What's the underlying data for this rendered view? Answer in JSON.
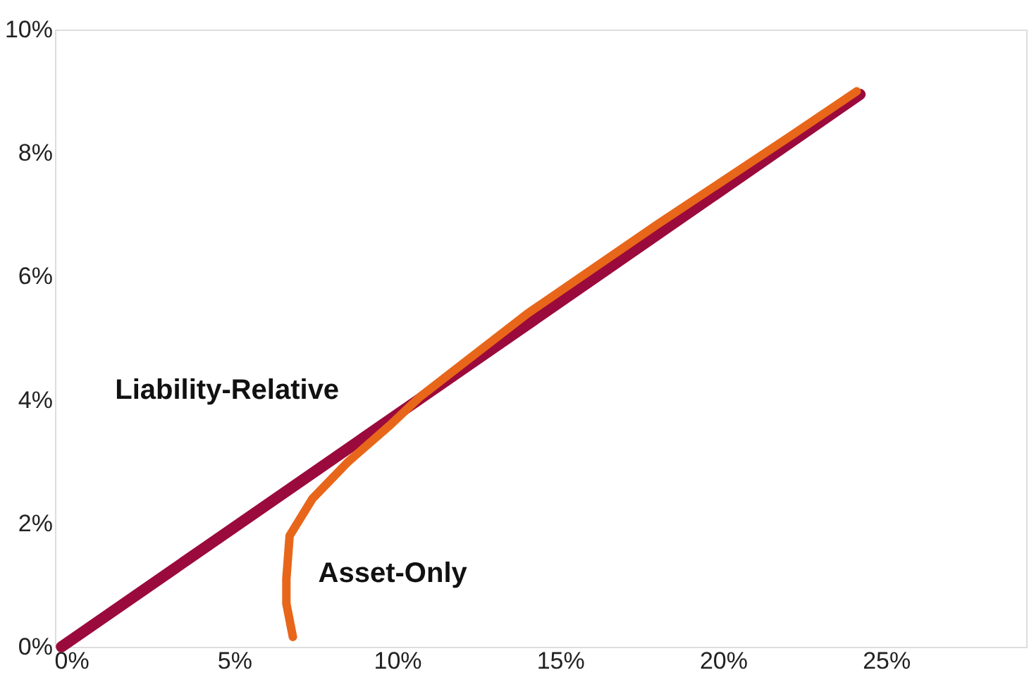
{
  "chart_data": {
    "type": "line",
    "series": [
      {
        "name": "Liability-Relative",
        "color": "#9b0a3c",
        "x": [
          -0.3,
          24.2
        ],
        "values": [
          0.0,
          8.95
        ]
      },
      {
        "name": "Asset-Only",
        "color": "#e8661a",
        "x": [
          6.8,
          6.6,
          6.6,
          6.7,
          7.4,
          8.5,
          9.8,
          10.7,
          14.0,
          18.0,
          22.0,
          24.1
        ],
        "values": [
          0.16,
          0.7,
          1.1,
          1.8,
          2.4,
          3.0,
          3.6,
          4.05,
          5.4,
          6.85,
          8.25,
          9.0
        ]
      }
    ],
    "xlim": [
      -0.5,
      29.3
    ],
    "ylim": [
      0,
      10
    ],
    "xticks": [
      {
        "value": 0,
        "label": "0%"
      },
      {
        "value": 5,
        "label": "5%"
      },
      {
        "value": 10,
        "label": "10%"
      },
      {
        "value": 15,
        "label": "15%"
      },
      {
        "value": 20,
        "label": "20%"
      },
      {
        "value": 25,
        "label": "25%"
      }
    ],
    "yticks": [
      {
        "value": 0,
        "label": "0%"
      },
      {
        "value": 2,
        "label": "2%"
      },
      {
        "value": 4,
        "label": "4%"
      },
      {
        "value": 6,
        "label": "6%"
      },
      {
        "value": 8,
        "label": "8%"
      },
      {
        "value": 10,
        "label": "10%"
      }
    ],
    "grid": false,
    "marker": "none",
    "line_style": "solid"
  }
}
